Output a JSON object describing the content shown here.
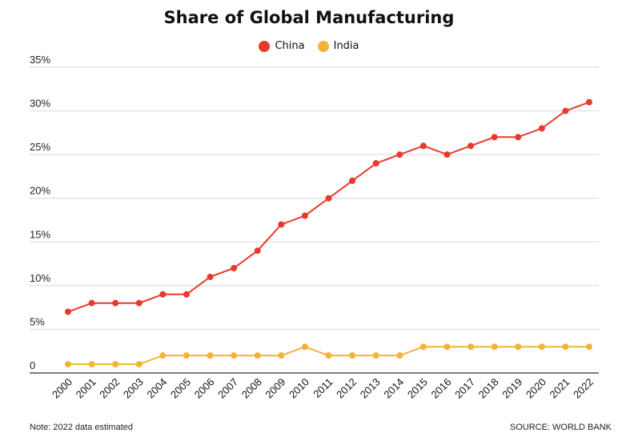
{
  "chart_data": {
    "type": "line",
    "title": "Share of Global Manufacturing",
    "xlabel": "",
    "ylabel": "",
    "categories": [
      "2000",
      "2001",
      "2002",
      "2003",
      "2004",
      "2005",
      "2006",
      "2007",
      "2008",
      "2009",
      "2010",
      "2011",
      "2012",
      "2013",
      "2014",
      "2015",
      "2016",
      "2017",
      "2018",
      "2019",
      "2020",
      "2021",
      "2022"
    ],
    "series": [
      {
        "name": "China",
        "color": "#e8392b",
        "values": [
          7,
          8,
          8,
          8,
          9,
          9,
          11,
          12,
          14,
          17,
          18,
          20,
          22,
          24,
          25,
          26,
          25,
          26,
          27,
          27,
          28,
          30,
          31
        ]
      },
      {
        "name": "India",
        "color": "#f5b335",
        "values": [
          1,
          1,
          1,
          1,
          2,
          2,
          2,
          2,
          2,
          2,
          3,
          2,
          2,
          2,
          2,
          3,
          3,
          3,
          3,
          3,
          3,
          3,
          3
        ]
      }
    ],
    "ylim": [
      0,
      35
    ],
    "yticks": [
      0,
      5,
      10,
      15,
      20,
      25,
      30,
      35
    ],
    "ytick_labels": [
      "0",
      "5%",
      "10%",
      "15%",
      "20%",
      "25%",
      "30%",
      "35%"
    ],
    "grid": true,
    "legend_position": "top-center"
  },
  "footnote": "Note: 2022 data estimated",
  "source": "SOURCE: WORLD BANK"
}
